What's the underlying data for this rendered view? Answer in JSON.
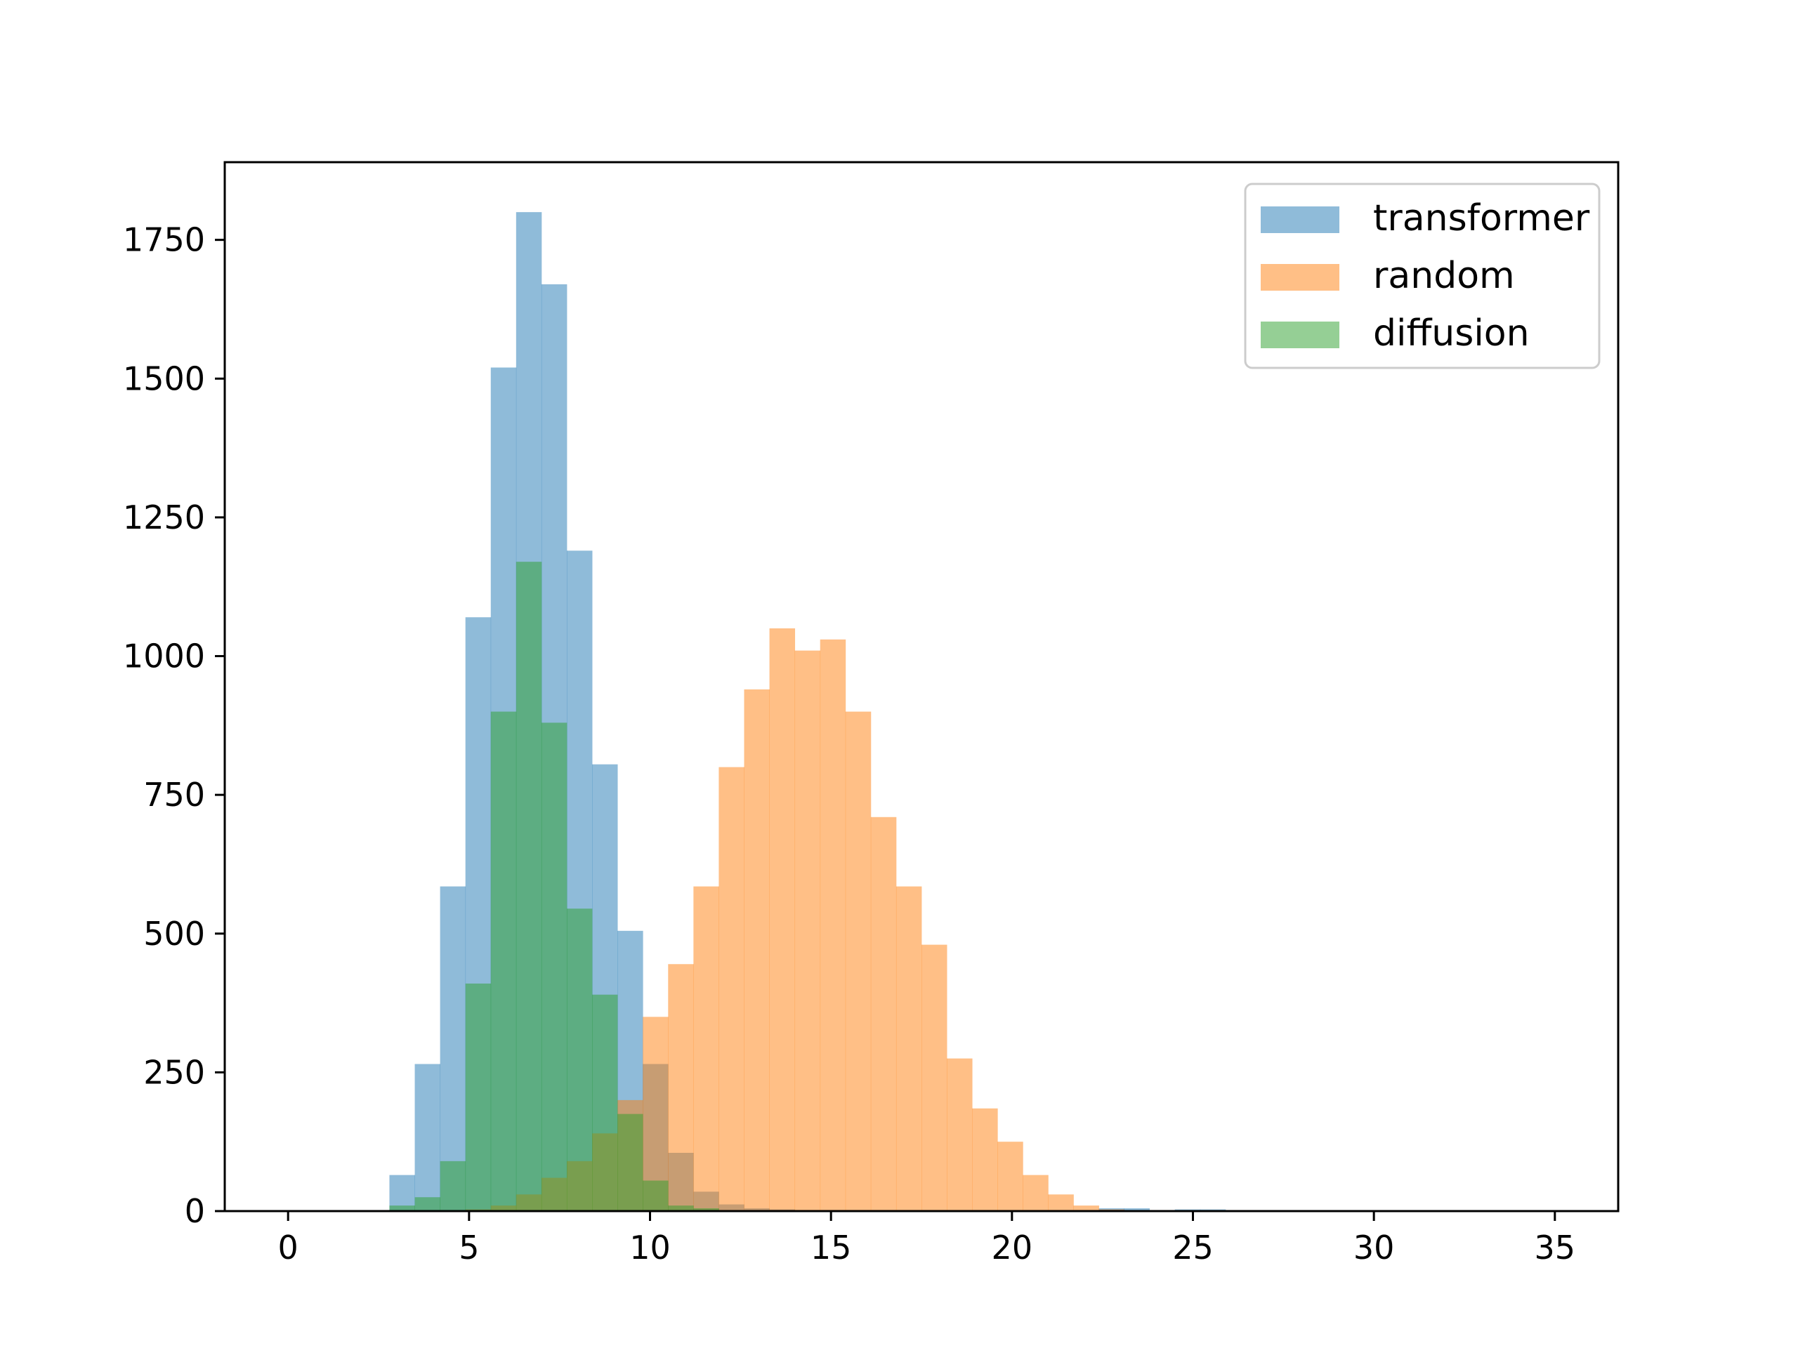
{
  "chart_data": {
    "type": "histogram",
    "xlim": [
      -1.75,
      36.75
    ],
    "ylim": [
      0,
      1890
    ],
    "grid": false,
    "legend_position": "upper right",
    "x_ticks": [
      0,
      5,
      10,
      15,
      20,
      25,
      30,
      35
    ],
    "y_ticks": [
      0,
      250,
      500,
      750,
      1000,
      1250,
      1500,
      1750
    ],
    "bin_start": 0,
    "bin_width": 0.7,
    "series": [
      {
        "name": "transformer",
        "color": "#1f77b4",
        "opacity": 0.5,
        "values": [
          0,
          0,
          0,
          0,
          65,
          265,
          585,
          1070,
          1520,
          1800,
          1670,
          1190,
          805,
          505,
          265,
          105,
          35,
          12,
          5,
          3,
          0,
          0,
          0,
          0,
          0,
          0,
          0,
          0,
          0,
          0,
          0,
          0,
          5,
          5,
          0,
          3,
          3,
          0,
          0,
          0,
          0,
          0,
          0,
          0,
          0,
          0,
          0,
          0,
          0,
          0
        ]
      },
      {
        "name": "random",
        "color": "#ff7f0e",
        "opacity": 0.5,
        "values": [
          0,
          0,
          0,
          0,
          0,
          0,
          0,
          0,
          0,
          0,
          0,
          0,
          0,
          0,
          445,
          265,
          135,
          55,
          25,
          10,
          3,
          2,
          0,
          0,
          0,
          0,
          0,
          0,
          0,
          0,
          0,
          0,
          0,
          0,
          0,
          0,
          0,
          0,
          0,
          0,
          0,
          0,
          0,
          0,
          0,
          0,
          0,
          0,
          0,
          0
        ],
        "values_visible_above_overlap": [
          0,
          0,
          0,
          0,
          0,
          0,
          0,
          0,
          0,
          0,
          0,
          0,
          0,
          0,
          0,
          585,
          800,
          940,
          1050,
          1010,
          1030,
          900,
          710,
          585,
          480,
          275,
          185,
          125,
          65,
          30,
          10,
          0,
          0,
          0,
          0,
          0,
          0,
          0,
          0,
          0,
          0,
          0,
          0,
          0,
          0,
          0,
          0,
          0,
          0,
          0
        ]
      },
      {
        "name": "diffusion",
        "color": "#2ca02c",
        "opacity": 0.5,
        "values": [
          0,
          0,
          0,
          0,
          10,
          25,
          90,
          410,
          900,
          1170,
          880,
          545,
          390,
          175,
          55,
          10,
          5,
          0,
          0,
          0,
          0,
          0,
          0,
          0,
          0,
          0,
          0,
          0,
          0,
          0,
          0,
          0,
          0,
          0,
          0,
          0,
          0,
          0,
          0,
          0,
          0,
          0,
          0,
          0,
          0,
          0,
          0,
          0,
          0,
          0
        ]
      }
    ],
    "random_shape": [
      0,
      0,
      0,
      0,
      0,
      0,
      1,
      3,
      10,
      30,
      60,
      90,
      140,
      200,
      350,
      445,
      585,
      800,
      940,
      1050,
      1010,
      1030,
      900,
      710,
      585,
      480,
      275,
      185,
      125,
      65,
      30,
      10,
      3,
      1,
      0,
      0,
      0,
      0,
      0,
      0,
      0,
      0,
      0,
      0,
      0,
      0,
      0,
      0,
      0,
      0
    ]
  }
}
